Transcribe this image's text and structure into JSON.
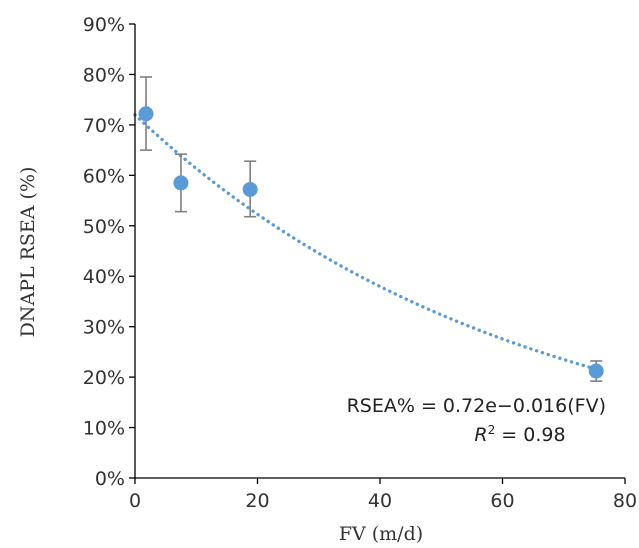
{
  "chart_data": {
    "type": "scatter",
    "xlabel": "FV (m/d)",
    "ylabel": "DNAPL RSEA (%)",
    "xlim": [
      0,
      80
    ],
    "ylim": [
      0,
      0.9
    ],
    "x_ticks": [
      0,
      20,
      40,
      60,
      80
    ],
    "x_tick_labels": [
      "0",
      "20",
      "40",
      "60",
      "80"
    ],
    "y_ticks": [
      0,
      0.1,
      0.2,
      0.3,
      0.4,
      0.5,
      0.6,
      0.7,
      0.8,
      0.9
    ],
    "y_tick_labels": [
      "0%",
      "10%",
      "20%",
      "30%",
      "40%",
      "50%",
      "60%",
      "70%",
      "80%",
      "90%"
    ],
    "grid": false,
    "legend": "none",
    "colors": {
      "points": "#5b9bd5",
      "error_bars": "#808080",
      "trendline": "#5b9bd5"
    },
    "series": [
      {
        "x": [
          1.8,
          7.5,
          18.8,
          75.3
        ],
        "y": [
          0.722,
          0.585,
          0.572,
          0.212
        ],
        "err_upper": [
          0.795,
          0.642,
          0.628,
          0.232
        ],
        "err_lower": [
          0.65,
          0.528,
          0.518,
          0.192
        ]
      }
    ],
    "trendline": {
      "type": "exponential",
      "a": 0.72,
      "b": -0.016,
      "x_range": [
        0,
        76
      ],
      "style": "dotted"
    },
    "annotation": {
      "equation": "RSEA% = 0.72e−0.016(FV)",
      "r2_symbol": "R",
      "r2_superscript": "2",
      "r2_value": " = 0.98"
    }
  }
}
